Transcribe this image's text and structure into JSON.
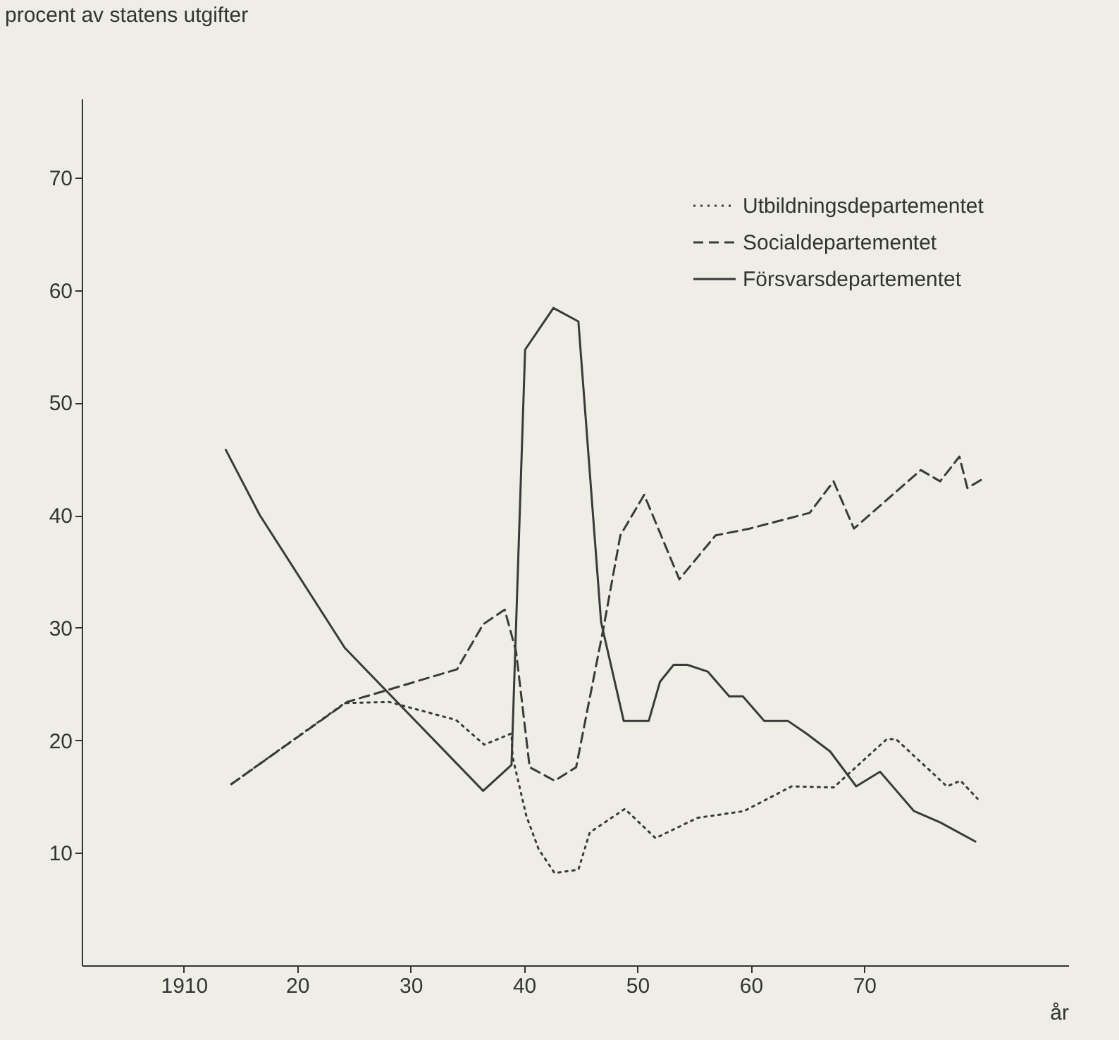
{
  "chart_data": {
    "type": "line",
    "xlabel": "år",
    "ylabel": "procent av statens utgifter",
    "xlim": [
      1901,
      1988
    ],
    "ylim": [
      0,
      77
    ],
    "xticks": [
      {
        "value": 1910,
        "label": "1910"
      },
      {
        "value": 1920,
        "label": "20"
      },
      {
        "value": 1930,
        "label": "30"
      },
      {
        "value": 1940,
        "label": "40"
      },
      {
        "value": 1950,
        "label": "50"
      },
      {
        "value": 1960,
        "label": "60"
      },
      {
        "value": 1970,
        "label": "70"
      }
    ],
    "yticks": [
      10,
      20,
      30,
      40,
      50,
      60,
      70
    ],
    "grid": false,
    "legend": "top right",
    "marker": "none",
    "series": [
      {
        "name": "Utbildningsdepartementet",
        "color": "#3a3a3a",
        "line_style": "dotted",
        "x": [
          1914.2,
          1924.2,
          1928.1,
          1934,
          1936.5,
          1938.9,
          1939,
          1940.2,
          1941.3,
          1942.7,
          1944.8,
          1945.8,
          1948.9,
          1951.6,
          1955.3,
          1959.4,
          1963.6,
          1967.3,
          1972,
          1972.8,
          1977.3,
          1978.5,
          1980
        ],
        "values": [
          16.1,
          23.3,
          23.4,
          21.8,
          19.6,
          20.6,
          18.5,
          13.3,
          10.3,
          8.2,
          8.5,
          11.8,
          13.9,
          11.3,
          13.1,
          13.7,
          15.9,
          15.8,
          20.1,
          20.1,
          15.9,
          16.4,
          14.8
        ]
      },
      {
        "name": "Socialdepartementet",
        "color": "#3a3a3a",
        "line_style": "dashed",
        "x": [
          1914.2,
          1924.4,
          1928.1,
          1934.1,
          1936.4,
          1938.3,
          1939.3,
          1940.5,
          1942.7,
          1944.6,
          1947,
          1948.5,
          1950.6,
          1953.7,
          1956.9,
          1959.9,
          1965.2,
          1967.3,
          1969.1,
          1975,
          1976.7,
          1978.4,
          1979.1,
          1980.6
        ],
        "values": [
          16.1,
          23.4,
          24.5,
          26.3,
          30.3,
          31.6,
          27.9,
          17.6,
          16.4,
          17.6,
          29.9,
          38.2,
          41.8,
          34.3,
          38.2,
          38.8,
          40.2,
          43,
          38.8,
          44,
          43,
          45.2,
          42.4,
          43.3
        ]
      },
      {
        "name": "Försvarsdepartementet",
        "color": "#3a3a3a",
        "line_style": "solid",
        "x": [
          1913.7,
          1916.7,
          1924.2,
          1936.4,
          1938.9,
          1940.1,
          1942.6,
          1944.8,
          1946.8,
          1948.8,
          1951,
          1952,
          1953.2,
          1954.4,
          1956.2,
          1958.1,
          1959.3,
          1961.2,
          1963.3,
          1964.9,
          1967,
          1969.3,
          1971.4,
          1974.4,
          1976.7,
          1979.8
        ],
        "values": [
          45.8,
          40,
          28.2,
          15.5,
          17.8,
          54.7,
          58.4,
          57.2,
          30.5,
          21.7,
          21.7,
          25.2,
          26.7,
          26.7,
          26.1,
          23.9,
          23.9,
          21.7,
          21.7,
          20.6,
          19,
          15.9,
          17.2,
          13.7,
          12.7,
          11
        ]
      }
    ]
  }
}
